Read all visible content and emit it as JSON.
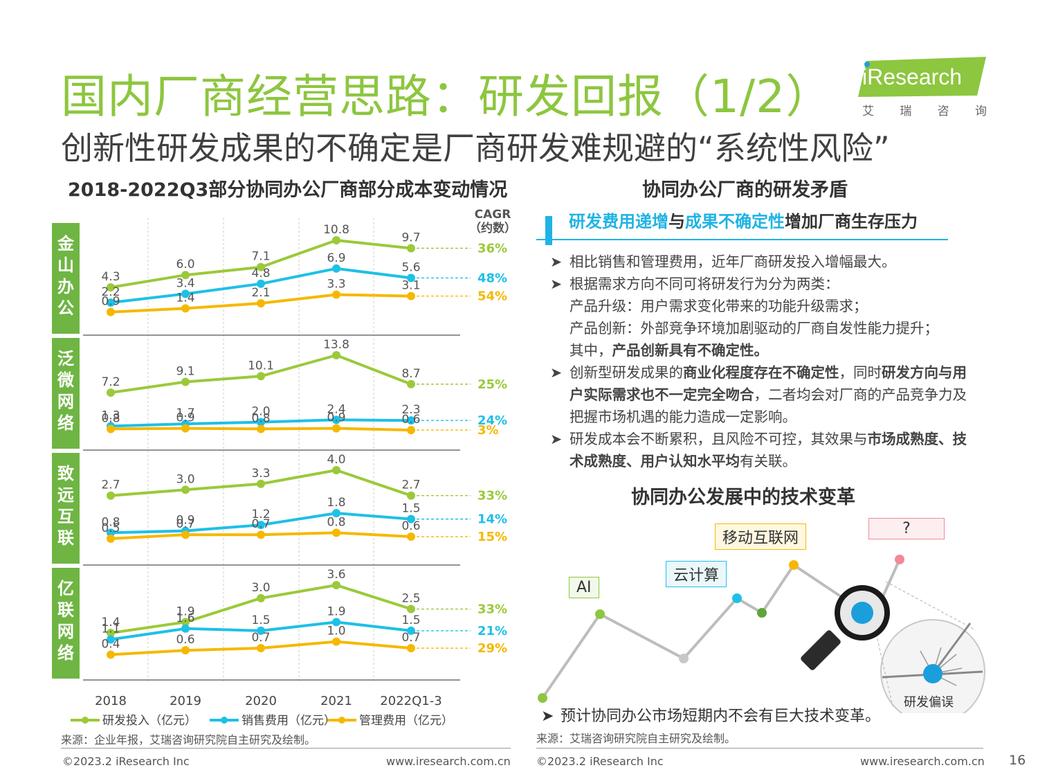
{
  "page": {
    "title": "国内厂商经营思路：研发回报（1/2）",
    "subtitle": "创新性研发成果的不确定是厂商研发难规避的“系统性风险”",
    "logo_text": "iResearch",
    "logo_sub": [
      "艾",
      "瑞",
      "咨",
      "询"
    ],
    "page_number": "16"
  },
  "left": {
    "chart_title": "2018-2022Q3部分协同办公厂商部分成本变动情况",
    "cagr_header": [
      "CAGR",
      "（约数）"
    ],
    "source": "来源：企业年报，艾瑞咨询研究院自主研究及绘制。",
    "footer_left": "©2023.2 iResearch Inc",
    "footer_right": "www.iresearch.com.cn"
  },
  "chart_data": {
    "type": "line",
    "categories": [
      "2018",
      "2019",
      "2020",
      "2021",
      "2022Q1-3"
    ],
    "series_names": [
      "研发投入（亿元）",
      "销售费用（亿元）",
      "管理费用（亿元）"
    ],
    "colors": [
      "#9bc93a",
      "#1ec0e6",
      "#f5b800"
    ],
    "panels": [
      {
        "company": "金山办公",
        "values": [
          [
            4.3,
            6.0,
            7.1,
            10.8,
            9.7
          ],
          [
            2.2,
            3.4,
            4.8,
            6.9,
            5.6
          ],
          [
            0.9,
            1.4,
            2.1,
            3.3,
            3.1
          ]
        ],
        "labels": [
          [
            "4.3",
            "6.0",
            "7.1",
            "10.8",
            "9.7"
          ],
          [
            "2.2",
            "3.4",
            "4.8",
            "6.9",
            "5.6"
          ],
          [
            "0.9",
            "1.4",
            "2.1",
            "3.3",
            "3.1"
          ]
        ],
        "cagr": [
          "36%",
          "48%",
          "54%"
        ]
      },
      {
        "company": "泛微网络",
        "values": [
          [
            7.2,
            9.1,
            10.1,
            13.8,
            8.7
          ],
          [
            1.3,
            1.7,
            2.0,
            2.4,
            2.3
          ],
          [
            0.8,
            0.9,
            0.8,
            0.9,
            0.6
          ]
        ],
        "labels": [
          [
            "7.2",
            "9.1",
            "10.1",
            "13.8",
            "8.7"
          ],
          [
            "1.3",
            "1.7",
            "2.0",
            "2.4",
            "2.3"
          ],
          [
            "0.8",
            "0.9",
            "0.8",
            "0.9",
            "0.6"
          ]
        ],
        "cagr": [
          "25%",
          "24%",
          "3%"
        ]
      },
      {
        "company": "致远互联",
        "values": [
          [
            2.7,
            3.0,
            3.3,
            4.0,
            2.7
          ],
          [
            0.8,
            0.9,
            1.2,
            1.8,
            1.5
          ],
          [
            0.5,
            0.7,
            0.7,
            0.8,
            0.6
          ]
        ],
        "labels": [
          [
            "2.7",
            "3.0",
            "3.3",
            "4.0",
            "2.7"
          ],
          [
            "0.8",
            "0.9",
            "1.2",
            "1.8",
            "1.5"
          ],
          [
            "0.5",
            "0.7",
            "0.7",
            "0.8",
            "0.6"
          ]
        ],
        "cagr": [
          "33%",
          "14%",
          "15%"
        ]
      },
      {
        "company": "亿联网络",
        "values": [
          [
            1.4,
            1.9,
            3.0,
            3.6,
            2.5
          ],
          [
            1.1,
            1.6,
            1.5,
            1.9,
            1.5
          ],
          [
            0.4,
            0.6,
            0.7,
            1.0,
            0.7
          ]
        ],
        "labels": [
          [
            "1.4",
            "1.9",
            "3.0",
            "3.6",
            "2.5"
          ],
          [
            "1.1",
            "1.6",
            "1.5",
            "1.9",
            "1.5"
          ],
          [
            "0.4",
            "0.6",
            "0.7",
            "1.0",
            "0.7"
          ]
        ],
        "cagr": [
          "33%",
          "21%",
          "29%"
        ]
      }
    ]
  },
  "right": {
    "section_title": "协同办公厂商的研发矛盾",
    "header": {
      "part1": "研发费用递增",
      "part2": "与",
      "part3": "成果不确定性",
      "part4": "增加厂商生存压力"
    },
    "bullets": {
      "b1": "相比销售和管理费用，近年厂商研发投入增幅最大。",
      "b2": "根据需求方向不同可将研发行为分为两类：",
      "b2_l1": "产品升级：用户需求变化带来的功能升级需求；",
      "b2_l2": "产品创新：外部竞争环境加剧驱动的厂商自发性能力提升；",
      "b2_l3a": "其中，",
      "b2_l3b": "产品创新具有不确定性。",
      "b3a": "创新型研发成果的",
      "b3b": "商业化程度存在不确定性",
      "b3c": "，同时",
      "b3d": "研发方向与用户实际需求也不一定完全吻合",
      "b3e": "，二者均会对厂商的产品竞争力及把握市场机遇的能力造成一定影响。",
      "b4a": "研发成本会不断累积，且风险不可控，其效果与",
      "b4b": "市场成熟度、技术成熟度、用户认知水平均",
      "b4c": "有关联。"
    },
    "tech_title": "协同办公发展中的技术变革",
    "tags": {
      "ai": "AI",
      "cloud": "云计算",
      "mobile": "移动互联网",
      "unknown": "?",
      "deviation": "研发偏误"
    },
    "bottom_note": "预计协同办公市场短期内不会有巨大技术变革。",
    "source": "来源：艾瑞咨询研究院自主研究及绘制。",
    "footer_left": "©2023.2 iResearch Inc",
    "footer_right": "www.iresearch.com.cn"
  }
}
